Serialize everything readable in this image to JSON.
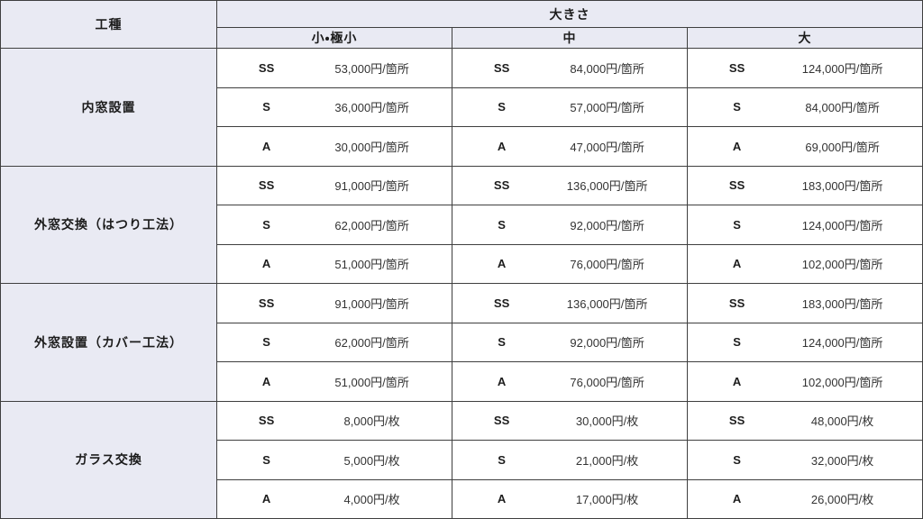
{
  "colors": {
    "header_bg": "#e9eaf3",
    "cell_bg": "#ffffff",
    "border": "#3f3f3f",
    "text": "#1c1c1c",
    "price_text": "#333333"
  },
  "table": {
    "kind_header": "工種",
    "size_header": "大きさ",
    "size_columns": [
      "小・極小",
      "中",
      "大"
    ],
    "groups": [
      {
        "kind": "内窓設置",
        "rows": [
          {
            "grade": "SS",
            "prices": [
              "53,000円/箇所",
              "84,000円/箇所",
              "124,000円/箇所"
            ]
          },
          {
            "grade": "S",
            "prices": [
              "36,000円/箇所",
              "57,000円/箇所",
              "84,000円/箇所"
            ]
          },
          {
            "grade": "A",
            "prices": [
              "30,000円/箇所",
              "47,000円/箇所",
              "69,000円/箇所"
            ]
          }
        ]
      },
      {
        "kind": "外窓交換（はつり工法）",
        "rows": [
          {
            "grade": "SS",
            "prices": [
              "91,000円/箇所",
              "136,000円/箇所",
              "183,000円/箇所"
            ]
          },
          {
            "grade": "S",
            "prices": [
              "62,000円/箇所",
              "92,000円/箇所",
              "124,000円/箇所"
            ]
          },
          {
            "grade": "A",
            "prices": [
              "51,000円/箇所",
              "76,000円/箇所",
              "102,000円/箇所"
            ]
          }
        ]
      },
      {
        "kind": "外窓設置（カバー工法）",
        "rows": [
          {
            "grade": "SS",
            "prices": [
              "91,000円/箇所",
              "136,000円/箇所",
              "183,000円/箇所"
            ]
          },
          {
            "grade": "S",
            "prices": [
              "62,000円/箇所",
              "92,000円/箇所",
              "124,000円/箇所"
            ]
          },
          {
            "grade": "A",
            "prices": [
              "51,000円/箇所",
              "76,000円/箇所",
              "102,000円/箇所"
            ]
          }
        ]
      },
      {
        "kind": "ガラス交換",
        "rows": [
          {
            "grade": "SS",
            "prices": [
              "8,000円/枚",
              "30,000円/枚",
              "48,000円/枚"
            ]
          },
          {
            "grade": "S",
            "prices": [
              "5,000円/枚",
              "21,000円/枚",
              "32,000円/枚"
            ]
          },
          {
            "grade": "A",
            "prices": [
              "4,000円/枚",
              "17,000円/枚",
              "26,000円/枚"
            ]
          }
        ]
      }
    ]
  }
}
